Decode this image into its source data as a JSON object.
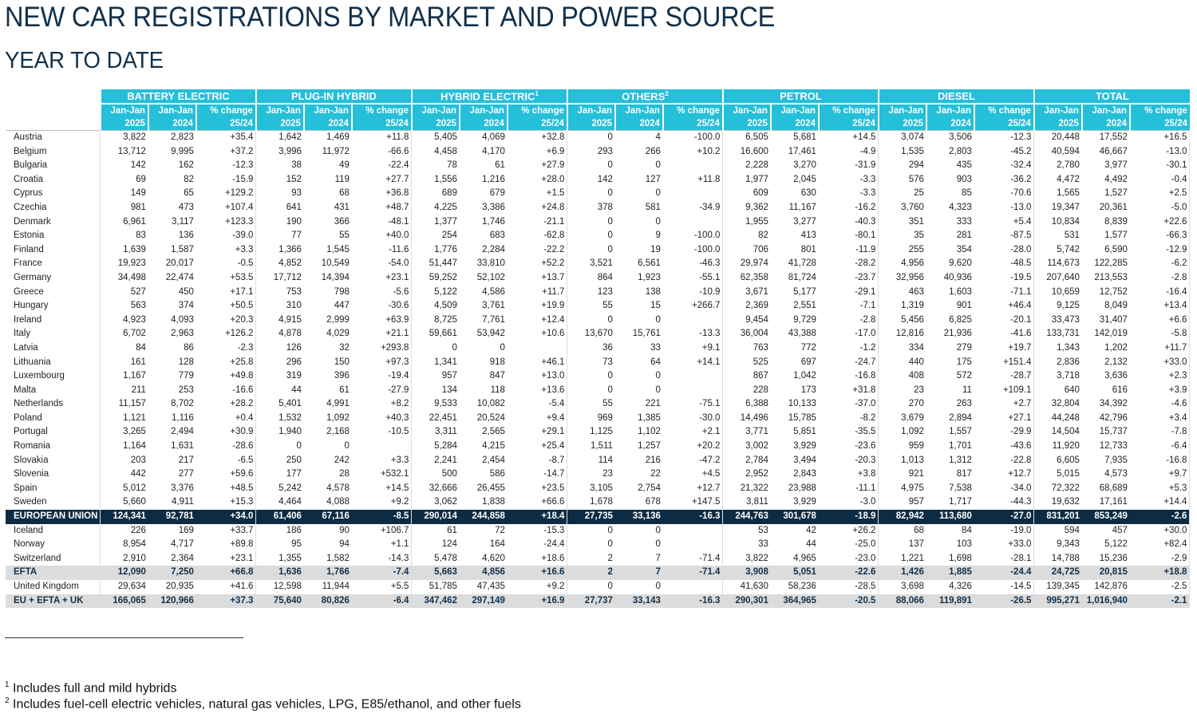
{
  "title": "NEW CAR REGISTRATIONS BY MARKET AND POWER SOURCE",
  "subtitle": "YEAR TO DATE",
  "groups": [
    {
      "label": "BATTERY ELECTRIC",
      "sup": ""
    },
    {
      "label": "PLUG-IN HYBRID",
      "sup": ""
    },
    {
      "label": "HYBRID ELECTRIC",
      "sup": "1"
    },
    {
      "label": "OTHERS",
      "sup": "2"
    },
    {
      "label": "PETROL",
      "sup": ""
    },
    {
      "label": "DIESEL",
      "sup": ""
    },
    {
      "label": "TOTAL",
      "sup": ""
    }
  ],
  "subheaders": [
    {
      "line1": "Jan-Jan",
      "line2": "2025"
    },
    {
      "line1": "Jan-Jan",
      "line2": "2024"
    },
    {
      "line1": "% change",
      "line2": "25/24"
    }
  ],
  "rows": [
    {
      "name": "Austria",
      "type": "",
      "values": [
        "3,822",
        "2,823",
        "+35.4",
        "1,642",
        "1,469",
        "+11.8",
        "5,405",
        "4,069",
        "+32.8",
        "0",
        "4",
        "-100.0",
        "6,505",
        "5,681",
        "+14.5",
        "3,074",
        "3,506",
        "-12.3",
        "20,448",
        "17,552",
        "+16.5"
      ]
    },
    {
      "name": "Belgium",
      "type": "",
      "values": [
        "13,712",
        "9,995",
        "+37.2",
        "3,996",
        "11,972",
        "-66.6",
        "4,458",
        "4,170",
        "+6.9",
        "293",
        "266",
        "+10.2",
        "16,600",
        "17,461",
        "-4.9",
        "1,535",
        "2,803",
        "-45.2",
        "40,594",
        "46,667",
        "-13.0"
      ]
    },
    {
      "name": "Bulgaria",
      "type": "",
      "values": [
        "142",
        "162",
        "-12.3",
        "38",
        "49",
        "-22.4",
        "78",
        "61",
        "+27.9",
        "0",
        "0",
        "",
        "2,228",
        "3,270",
        "-31.9",
        "294",
        "435",
        "-32.4",
        "2,780",
        "3,977",
        "-30.1"
      ]
    },
    {
      "name": "Croatia",
      "type": "",
      "values": [
        "69",
        "82",
        "-15.9",
        "152",
        "119",
        "+27.7",
        "1,556",
        "1,216",
        "+28.0",
        "142",
        "127",
        "+11.8",
        "1,977",
        "2,045",
        "-3.3",
        "576",
        "903",
        "-36.2",
        "4,472",
        "4,492",
        "-0.4"
      ]
    },
    {
      "name": "Cyprus",
      "type": "",
      "values": [
        "149",
        "65",
        "+129.2",
        "93",
        "68",
        "+36.8",
        "689",
        "679",
        "+1.5",
        "0",
        "0",
        "",
        "609",
        "630",
        "-3.3",
        "25",
        "85",
        "-70.6",
        "1,565",
        "1,527",
        "+2.5"
      ]
    },
    {
      "name": "Czechia",
      "type": "",
      "values": [
        "981",
        "473",
        "+107.4",
        "641",
        "431",
        "+48.7",
        "4,225",
        "3,386",
        "+24.8",
        "378",
        "581",
        "-34.9",
        "9,362",
        "11,167",
        "-16.2",
        "3,760",
        "4,323",
        "-13.0",
        "19,347",
        "20,361",
        "-5.0"
      ]
    },
    {
      "name": "Denmark",
      "type": "",
      "values": [
        "6,961",
        "3,117",
        "+123.3",
        "190",
        "366",
        "-48.1",
        "1,377",
        "1,746",
        "-21.1",
        "0",
        "0",
        "",
        "1,955",
        "3,277",
        "-40.3",
        "351",
        "333",
        "+5.4",
        "10,834",
        "8,839",
        "+22.6"
      ]
    },
    {
      "name": "Estonia",
      "type": "",
      "values": [
        "83",
        "136",
        "-39.0",
        "77",
        "55",
        "+40.0",
        "254",
        "683",
        "-62.8",
        "0",
        "9",
        "-100.0",
        "82",
        "413",
        "-80.1",
        "35",
        "281",
        "-87.5",
        "531",
        "1,577",
        "-66.3"
      ]
    },
    {
      "name": "Finland",
      "type": "",
      "values": [
        "1,639",
        "1,587",
        "+3.3",
        "1,366",
        "1,545",
        "-11.6",
        "1,776",
        "2,284",
        "-22.2",
        "0",
        "19",
        "-100.0",
        "706",
        "801",
        "-11.9",
        "255",
        "354",
        "-28.0",
        "5,742",
        "6,590",
        "-12.9"
      ]
    },
    {
      "name": "France",
      "type": "",
      "values": [
        "19,923",
        "20,017",
        "-0.5",
        "4,852",
        "10,549",
        "-54.0",
        "51,447",
        "33,810",
        "+52.2",
        "3,521",
        "6,561",
        "-46.3",
        "29,974",
        "41,728",
        "-28.2",
        "4,956",
        "9,620",
        "-48.5",
        "114,673",
        "122,285",
        "-6.2"
      ]
    },
    {
      "name": "Germany",
      "type": "",
      "values": [
        "34,498",
        "22,474",
        "+53.5",
        "17,712",
        "14,394",
        "+23.1",
        "59,252",
        "52,102",
        "+13.7",
        "864",
        "1,923",
        "-55.1",
        "62,358",
        "81,724",
        "-23.7",
        "32,956",
        "40,936",
        "-19.5",
        "207,640",
        "213,553",
        "-2.8"
      ]
    },
    {
      "name": "Greece",
      "type": "",
      "values": [
        "527",
        "450",
        "+17.1",
        "753",
        "798",
        "-5.6",
        "5,122",
        "4,586",
        "+11.7",
        "123",
        "138",
        "-10.9",
        "3,671",
        "5,177",
        "-29.1",
        "463",
        "1,603",
        "-71.1",
        "10,659",
        "12,752",
        "-16.4"
      ]
    },
    {
      "name": "Hungary",
      "type": "",
      "values": [
        "563",
        "374",
        "+50.5",
        "310",
        "447",
        "-30.6",
        "4,509",
        "3,761",
        "+19.9",
        "55",
        "15",
        "+266.7",
        "2,369",
        "2,551",
        "-7.1",
        "1,319",
        "901",
        "+46.4",
        "9,125",
        "8,049",
        "+13.4"
      ]
    },
    {
      "name": "Ireland",
      "type": "",
      "values": [
        "4,923",
        "4,093",
        "+20.3",
        "4,915",
        "2,999",
        "+63.9",
        "8,725",
        "7,761",
        "+12.4",
        "0",
        "0",
        "",
        "9,454",
        "9,729",
        "-2.8",
        "5,456",
        "6,825",
        "-20.1",
        "33,473",
        "31,407",
        "+6.6"
      ]
    },
    {
      "name": "Italy",
      "type": "",
      "values": [
        "6,702",
        "2,963",
        "+126.2",
        "4,878",
        "4,029",
        "+21.1",
        "59,661",
        "53,942",
        "+10.6",
        "13,670",
        "15,761",
        "-13.3",
        "36,004",
        "43,388",
        "-17.0",
        "12,816",
        "21,936",
        "-41.6",
        "133,731",
        "142,019",
        "-5.8"
      ]
    },
    {
      "name": "Latvia",
      "type": "",
      "values": [
        "84",
        "86",
        "-2.3",
        "126",
        "32",
        "+293.8",
        "0",
        "0",
        "",
        "36",
        "33",
        "+9.1",
        "763",
        "772",
        "-1.2",
        "334",
        "279",
        "+19.7",
        "1,343",
        "1,202",
        "+11.7"
      ]
    },
    {
      "name": "Lithuania",
      "type": "",
      "values": [
        "161",
        "128",
        "+25.8",
        "296",
        "150",
        "+97.3",
        "1,341",
        "918",
        "+46.1",
        "73",
        "64",
        "+14.1",
        "525",
        "697",
        "-24.7",
        "440",
        "175",
        "+151.4",
        "2,836",
        "2,132",
        "+33.0"
      ]
    },
    {
      "name": "Luxembourg",
      "type": "",
      "values": [
        "1,167",
        "779",
        "+49.8",
        "319",
        "396",
        "-19.4",
        "957",
        "847",
        "+13.0",
        "0",
        "0",
        "",
        "867",
        "1,042",
        "-16.8",
        "408",
        "572",
        "-28.7",
        "3,718",
        "3,636",
        "+2.3"
      ]
    },
    {
      "name": "Malta",
      "type": "",
      "values": [
        "211",
        "253",
        "-16.6",
        "44",
        "61",
        "-27.9",
        "134",
        "118",
        "+13.6",
        "0",
        "0",
        "",
        "228",
        "173",
        "+31.8",
        "23",
        "11",
        "+109.1",
        "640",
        "616",
        "+3.9"
      ]
    },
    {
      "name": "Netherlands",
      "type": "",
      "values": [
        "11,157",
        "8,702",
        "+28.2",
        "5,401",
        "4,991",
        "+8.2",
        "9,533",
        "10,082",
        "-5.4",
        "55",
        "221",
        "-75.1",
        "6,388",
        "10,133",
        "-37.0",
        "270",
        "263",
        "+2.7",
        "32,804",
        "34,392",
        "-4.6"
      ]
    },
    {
      "name": "Poland",
      "type": "",
      "values": [
        "1,121",
        "1,116",
        "+0.4",
        "1,532",
        "1,092",
        "+40.3",
        "22,451",
        "20,524",
        "+9.4",
        "969",
        "1,385",
        "-30.0",
        "14,496",
        "15,785",
        "-8.2",
        "3,679",
        "2,894",
        "+27.1",
        "44,248",
        "42,796",
        "+3.4"
      ]
    },
    {
      "name": "Portugal",
      "type": "",
      "values": [
        "3,265",
        "2,494",
        "+30.9",
        "1,940",
        "2,168",
        "-10.5",
        "3,311",
        "2,565",
        "+29.1",
        "1,125",
        "1,102",
        "+2.1",
        "3,771",
        "5,851",
        "-35.5",
        "1,092",
        "1,557",
        "-29.9",
        "14,504",
        "15,737",
        "-7.8"
      ]
    },
    {
      "name": "Romania",
      "type": "",
      "values": [
        "1,164",
        "1,631",
        "-28.6",
        "0",
        "0",
        "",
        "5,284",
        "4,215",
        "+25.4",
        "1,511",
        "1,257",
        "+20.2",
        "3,002",
        "3,929",
        "-23.6",
        "959",
        "1,701",
        "-43.6",
        "11,920",
        "12,733",
        "-6.4"
      ]
    },
    {
      "name": "Slovakia",
      "type": "",
      "values": [
        "203",
        "217",
        "-6.5",
        "250",
        "242",
        "+3.3",
        "2,241",
        "2,454",
        "-8.7",
        "114",
        "216",
        "-47.2",
        "2,784",
        "3,494",
        "-20.3",
        "1,013",
        "1,312",
        "-22.8",
        "6,605",
        "7,935",
        "-16.8"
      ]
    },
    {
      "name": "Slovenia",
      "type": "",
      "values": [
        "442",
        "277",
        "+59.6",
        "177",
        "28",
        "+532.1",
        "500",
        "586",
        "-14.7",
        "23",
        "22",
        "+4.5",
        "2,952",
        "2,843",
        "+3.8",
        "921",
        "817",
        "+12.7",
        "5,015",
        "4,573",
        "+9.7"
      ]
    },
    {
      "name": "Spain",
      "type": "",
      "values": [
        "5,012",
        "3,376",
        "+48.5",
        "5,242",
        "4,578",
        "+14.5",
        "32,666",
        "26,455",
        "+23.5",
        "3,105",
        "2,754",
        "+12.7",
        "21,322",
        "23,988",
        "-11.1",
        "4,975",
        "7,538",
        "-34.0",
        "72,322",
        "68,689",
        "+5.3"
      ]
    },
    {
      "name": "Sweden",
      "type": "",
      "values": [
        "5,660",
        "4,911",
        "+15.3",
        "4,464",
        "4,088",
        "+9.2",
        "3,062",
        "1,838",
        "+66.6",
        "1,678",
        "678",
        "+147.5",
        "3,811",
        "3,929",
        "-3.0",
        "957",
        "1,717",
        "-44.3",
        "19,632",
        "17,161",
        "+14.4"
      ]
    },
    {
      "name": "EUROPEAN UNION",
      "type": "eu",
      "values": [
        "124,341",
        "92,781",
        "+34.0",
        "61,406",
        "67,116",
        "-8.5",
        "290,014",
        "244,858",
        "+18.4",
        "27,735",
        "33,136",
        "-16.3",
        "244,763",
        "301,678",
        "-18.9",
        "82,942",
        "113,680",
        "-27.0",
        "831,201",
        "853,249",
        "-2.6"
      ]
    },
    {
      "name": "Iceland",
      "type": "",
      "values": [
        "226",
        "169",
        "+33.7",
        "186",
        "90",
        "+106.7",
        "61",
        "72",
        "-15.3",
        "0",
        "0",
        "",
        "53",
        "42",
        "+26.2",
        "68",
        "84",
        "-19.0",
        "594",
        "457",
        "+30.0"
      ]
    },
    {
      "name": "Norway",
      "type": "",
      "values": [
        "8,954",
        "4,717",
        "+89.8",
        "95",
        "94",
        "+1.1",
        "124",
        "164",
        "-24.4",
        "0",
        "0",
        "",
        "33",
        "44",
        "-25.0",
        "137",
        "103",
        "+33.0",
        "9,343",
        "5,122",
        "+82.4"
      ]
    },
    {
      "name": "Switzerland",
      "type": "",
      "values": [
        "2,910",
        "2,364",
        "+23.1",
        "1,355",
        "1,582",
        "-14.3",
        "5,478",
        "4,620",
        "+18.6",
        "2",
        "7",
        "-71.4",
        "3,822",
        "4,965",
        "-23.0",
        "1,221",
        "1,698",
        "-28.1",
        "14,788",
        "15,236",
        "-2.9"
      ]
    },
    {
      "name": "EFTA",
      "type": "efta",
      "values": [
        "12,090",
        "7,250",
        "+66.8",
        "1,636",
        "1,766",
        "-7.4",
        "5,663",
        "4,856",
        "+16.6",
        "2",
        "7",
        "-71.4",
        "3,908",
        "5,051",
        "-22.6",
        "1,426",
        "1,885",
        "-24.4",
        "24,725",
        "20,815",
        "+18.8"
      ]
    },
    {
      "name": "United Kingdom",
      "type": "",
      "values": [
        "29,634",
        "20,935",
        "+41.6",
        "12,598",
        "11,944",
        "+5.5",
        "51,785",
        "47,435",
        "+9.2",
        "0",
        "0",
        "",
        "41,630",
        "58,236",
        "-28.5",
        "3,698",
        "4,326",
        "-14.5",
        "139,345",
        "142,876",
        "-2.5"
      ]
    },
    {
      "name": "EU + EFTA + UK",
      "type": "efta",
      "values": [
        "166,065",
        "120,966",
        "+37.3",
        "75,640",
        "80,826",
        "-6.4",
        "347,462",
        "297,149",
        "+16.9",
        "27,737",
        "33,143",
        "-16.3",
        "290,301",
        "364,965",
        "-20.5",
        "88,066",
        "119,891",
        "-26.5",
        "995,271",
        "1,016,940",
        "-2.1"
      ]
    }
  ],
  "footnotes": [
    {
      "mark": "1",
      "text": "Includes full and mild hybrids"
    },
    {
      "mark": "2",
      "text": "Includes fuel-cell electric vehicles, natural gas vehicles, LPG, E85/ethanol, and other fuels"
    }
  ],
  "colors": {
    "header": "#24bfd9",
    "eu_row": "#0d2c44",
    "subtotal_row": "#dcdcdc",
    "title": "#12304a"
  }
}
